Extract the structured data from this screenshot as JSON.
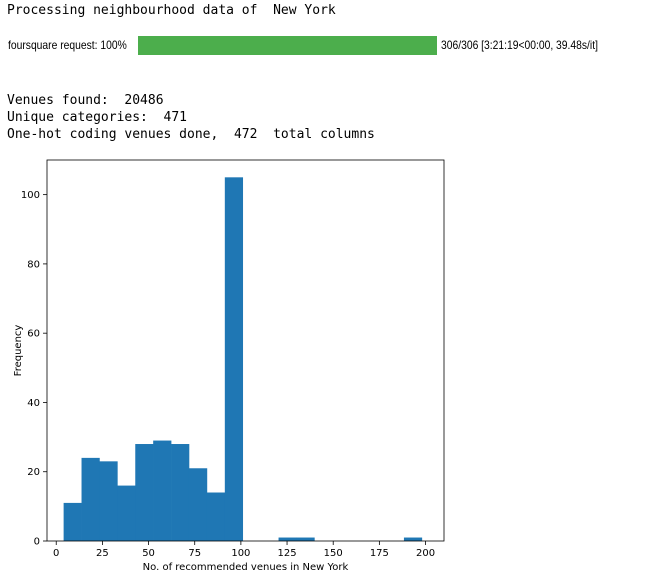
{
  "output": {
    "processing_line": "Processing neighbourhood data of  New York",
    "progress": {
      "label": "foursquare request: 100%",
      "fraction": 1.0,
      "stats": "306/306 [3:21:19<00:00, 39.48s/it]",
      "fill_color": "#4cae4c"
    },
    "venues_line": "Venues found:  20486",
    "categories_line": "Unique categories:  471",
    "onehot_line": "One-hot coding venues done,  472  total columns"
  },
  "chart_data": {
    "type": "bar",
    "title": "",
    "xlabel": "No. of recommended venues in New York",
    "ylabel": "Frequency",
    "xlim": [
      -5,
      210
    ],
    "ylim": [
      0,
      110
    ],
    "xticks": [
      0,
      25,
      50,
      75,
      100,
      125,
      150,
      175,
      200
    ],
    "yticks": [
      0,
      20,
      40,
      60,
      80,
      100
    ],
    "bar_color": "#1f77b4",
    "bin_width": 9.7,
    "bins": [
      {
        "x": 4.0,
        "value": 11
      },
      {
        "x": 13.7,
        "value": 24
      },
      {
        "x": 23.4,
        "value": 23
      },
      {
        "x": 33.1,
        "value": 16
      },
      {
        "x": 42.8,
        "value": 28
      },
      {
        "x": 52.5,
        "value": 29
      },
      {
        "x": 62.2,
        "value": 28
      },
      {
        "x": 71.9,
        "value": 21
      },
      {
        "x": 81.6,
        "value": 14
      },
      {
        "x": 91.3,
        "value": 105
      },
      {
        "x": 120.4,
        "value": 1
      },
      {
        "x": 130.1,
        "value": 1
      },
      {
        "x": 188.3,
        "value": 1
      }
    ]
  }
}
